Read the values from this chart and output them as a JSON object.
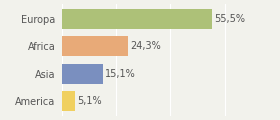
{
  "categories": [
    "Europa",
    "Africa",
    "Asia",
    "America"
  ],
  "values": [
    55.5,
    24.3,
    15.1,
    5.1
  ],
  "labels": [
    "55,5%",
    "24,3%",
    "15,1%",
    "5,1%"
  ],
  "bar_colors": [
    "#adc178",
    "#e8aa78",
    "#7a8fbf",
    "#f0d060"
  ],
  "background_color": "#f2f2ec",
  "xlim": [
    0,
    68
  ],
  "bar_height": 0.72,
  "label_fontsize": 7.0,
  "category_fontsize": 7.0,
  "label_color": "#555555",
  "grid_color": "#ffffff"
}
